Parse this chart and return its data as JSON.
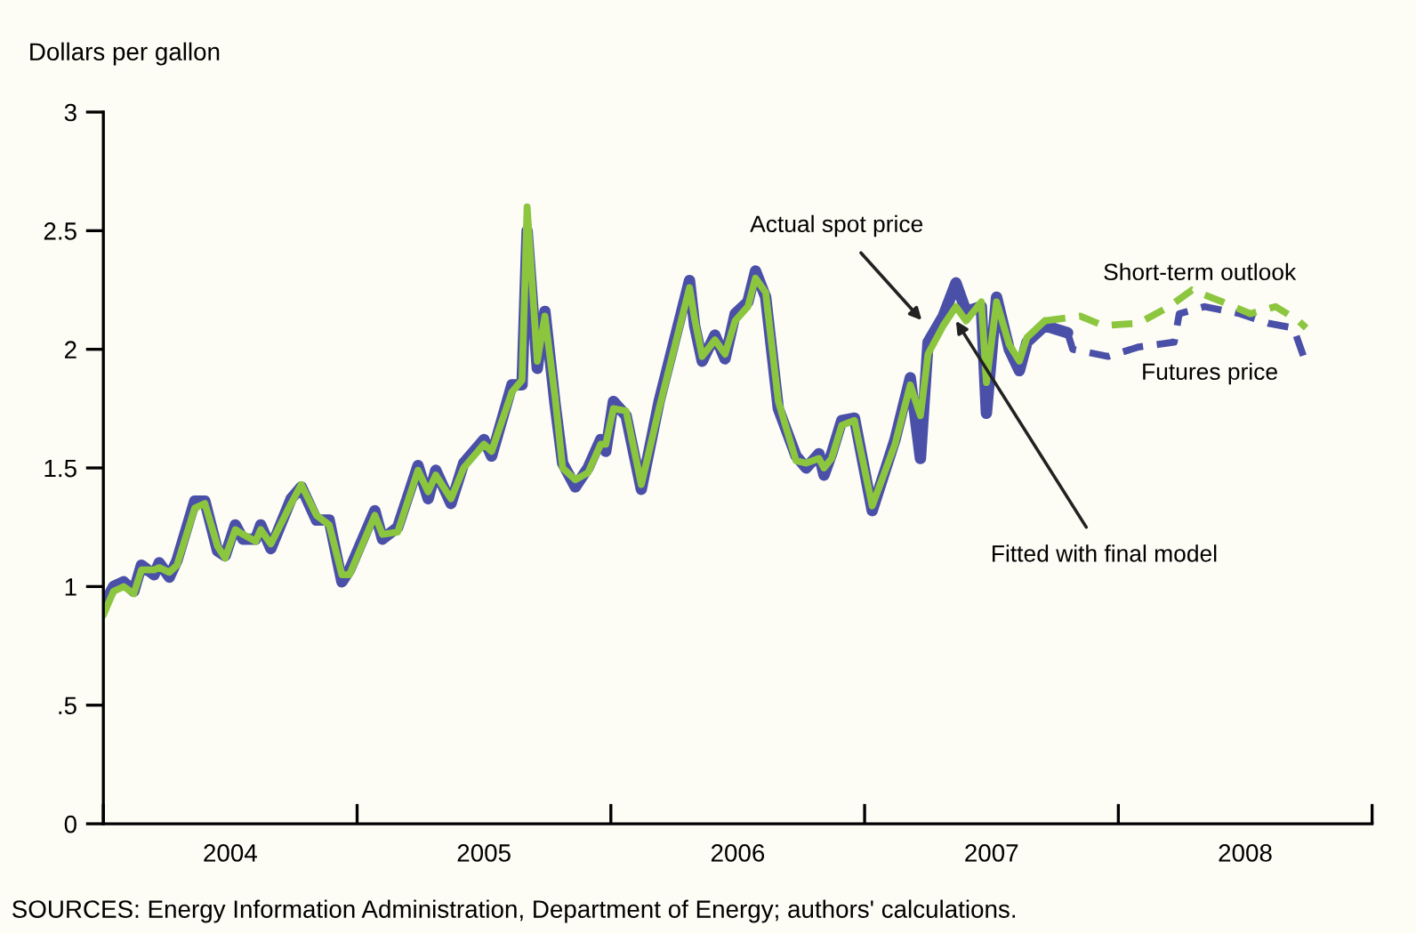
{
  "chart_data": {
    "type": "line",
    "ylabel": "Dollars per gallon",
    "xlim": [
      2004,
      2009
    ],
    "ylim": [
      0,
      3
    ],
    "xticks": [
      {
        "value": 2004,
        "label": null
      },
      {
        "value": 2004.5,
        "label": "2004"
      },
      {
        "value": 2005,
        "label": null
      },
      {
        "value": 2005.5,
        "label": "2005"
      },
      {
        "value": 2006,
        "label": null
      },
      {
        "value": 2006.5,
        "label": "2006"
      },
      {
        "value": 2007,
        "label": null
      },
      {
        "value": 2007.5,
        "label": "2007"
      },
      {
        "value": 2008,
        "label": null
      },
      {
        "value": 2008.5,
        "label": "2008"
      },
      {
        "value": 2009,
        "label": null
      }
    ],
    "yticks": [
      0,
      {
        "value": 0.5,
        "label": ".5"
      },
      1,
      1.5,
      2,
      2.5,
      3
    ],
    "grid": false,
    "legend": false,
    "series": [
      {
        "color": "#4a4fa8",
        "line_style": "solid",
        "x": [
          2004.0,
          2004.04,
          2004.08,
          2004.12,
          2004.15,
          2004.2,
          2004.22,
          2004.26,
          2004.29,
          2004.36,
          2004.4,
          2004.45,
          2004.48,
          2004.52,
          2004.55,
          2004.6,
          2004.62,
          2004.66,
          2004.74,
          2004.78,
          2004.84,
          2004.89,
          2004.94,
          2004.97,
          2005.07,
          2005.1,
          2005.16,
          2005.24,
          2005.28,
          2005.31,
          2005.37,
          2005.42,
          2005.5,
          2005.53,
          2005.61,
          2005.65,
          2005.67,
          2005.71,
          2005.74,
          2005.78,
          2005.81,
          2005.86,
          2005.91,
          2005.96,
          2005.98,
          2006.01,
          2006.06,
          2006.12,
          2006.19,
          2006.31,
          2006.33,
          2006.36,
          2006.41,
          2006.45,
          2006.49,
          2006.54,
          2006.57,
          2006.61,
          2006.66,
          2006.73,
          2006.77,
          2006.82,
          2006.84,
          2006.87,
          2006.91,
          2006.96,
          2007.03,
          2007.12,
          2007.18,
          2007.22,
          2007.25,
          2007.31,
          2007.36,
          2007.4,
          2007.46,
          2007.48,
          2007.52,
          2007.57,
          2007.61,
          2007.64,
          2007.71,
          2007.8
        ],
        "values": [
          0.92,
          1.0,
          1.02,
          0.98,
          1.09,
          1.05,
          1.1,
          1.04,
          1.11,
          1.36,
          1.36,
          1.15,
          1.13,
          1.26,
          1.2,
          1.2,
          1.26,
          1.16,
          1.37,
          1.42,
          1.28,
          1.28,
          1.02,
          1.07,
          1.32,
          1.2,
          1.25,
          1.51,
          1.37,
          1.49,
          1.35,
          1.52,
          1.62,
          1.55,
          1.85,
          1.85,
          2.5,
          1.92,
          2.16,
          1.77,
          1.52,
          1.42,
          1.5,
          1.62,
          1.57,
          1.78,
          1.72,
          1.41,
          1.78,
          2.29,
          2.1,
          1.95,
          2.06,
          1.96,
          2.15,
          2.2,
          2.33,
          2.22,
          1.75,
          1.55,
          1.5,
          1.56,
          1.47,
          1.56,
          1.7,
          1.71,
          1.32,
          1.62,
          1.88,
          1.54,
          2.03,
          2.14,
          2.28,
          2.16,
          2.18,
          1.73,
          2.22,
          2.0,
          1.91,
          2.03,
          2.1,
          2.07
        ]
      },
      {
        "color": "#8cc63f",
        "line_style": "solid",
        "x": [
          2004.0,
          2004.04,
          2004.08,
          2004.12,
          2004.15,
          2004.2,
          2004.22,
          2004.26,
          2004.29,
          2004.36,
          2004.4,
          2004.45,
          2004.48,
          2004.52,
          2004.55,
          2004.6,
          2004.62,
          2004.66,
          2004.74,
          2004.78,
          2004.84,
          2004.89,
          2004.94,
          2004.97,
          2005.07,
          2005.1,
          2005.16,
          2005.24,
          2005.28,
          2005.31,
          2005.37,
          2005.42,
          2005.5,
          2005.53,
          2005.61,
          2005.65,
          2005.67,
          2005.71,
          2005.74,
          2005.78,
          2005.81,
          2005.86,
          2005.91,
          2005.96,
          2005.98,
          2006.01,
          2006.06,
          2006.12,
          2006.19,
          2006.31,
          2006.33,
          2006.36,
          2006.41,
          2006.45,
          2006.49,
          2006.54,
          2006.57,
          2006.61,
          2006.66,
          2006.73,
          2006.77,
          2006.82,
          2006.84,
          2006.87,
          2006.91,
          2006.96,
          2007.03,
          2007.12,
          2007.18,
          2007.22,
          2007.25,
          2007.31,
          2007.36,
          2007.4,
          2007.46,
          2007.48,
          2007.52,
          2007.57,
          2007.61,
          2007.64,
          2007.71
        ],
        "values": [
          0.88,
          0.98,
          1.0,
          0.97,
          1.07,
          1.07,
          1.08,
          1.06,
          1.09,
          1.33,
          1.35,
          1.17,
          1.12,
          1.24,
          1.22,
          1.19,
          1.24,
          1.18,
          1.35,
          1.43,
          1.3,
          1.26,
          1.05,
          1.05,
          1.3,
          1.22,
          1.23,
          1.49,
          1.4,
          1.47,
          1.37,
          1.5,
          1.6,
          1.57,
          1.82,
          1.87,
          2.6,
          1.95,
          2.14,
          1.8,
          1.5,
          1.45,
          1.48,
          1.6,
          1.6,
          1.75,
          1.74,
          1.43,
          1.75,
          2.26,
          2.13,
          1.97,
          2.04,
          1.98,
          2.12,
          2.18,
          2.3,
          2.24,
          1.78,
          1.53,
          1.52,
          1.54,
          1.5,
          1.54,
          1.68,
          1.7,
          1.34,
          1.6,
          1.85,
          1.72,
          1.98,
          2.1,
          2.18,
          2.12,
          2.2,
          1.86,
          2.2,
          2.02,
          1.95,
          2.05,
          2.12
        ]
      },
      {
        "color": "#4a4fa8",
        "line_style": "dashed",
        "x": [
          2007.8,
          2007.82,
          2007.96,
          2008.08,
          2008.22,
          2008.24,
          2008.34,
          2008.48,
          2008.59,
          2008.69,
          2008.73
        ],
        "values": [
          2.07,
          2.0,
          1.97,
          2.01,
          2.03,
          2.15,
          2.18,
          2.15,
          2.11,
          2.09,
          1.97
        ]
      },
      {
        "color": "#8cc63f",
        "line_style": "dashed",
        "x": [
          2007.71,
          2007.85,
          2007.94,
          2008.08,
          2008.2,
          2008.29,
          2008.41,
          2008.52,
          2008.62,
          2008.71,
          2008.74
        ],
        "values": [
          2.12,
          2.14,
          2.1,
          2.11,
          2.18,
          2.25,
          2.2,
          2.15,
          2.18,
          2.12,
          2.09
        ]
      }
    ],
    "annotations": [
      "Actual spot price",
      {
        "text": "Fitted with final model",
        "x": 2007.36,
        "y": 2.12
      },
      "Short-term outlook",
      "Futures price",
      "SOURCES: Energy Information Administration, Department of Energy; authors' calculations."
    ]
  }
}
